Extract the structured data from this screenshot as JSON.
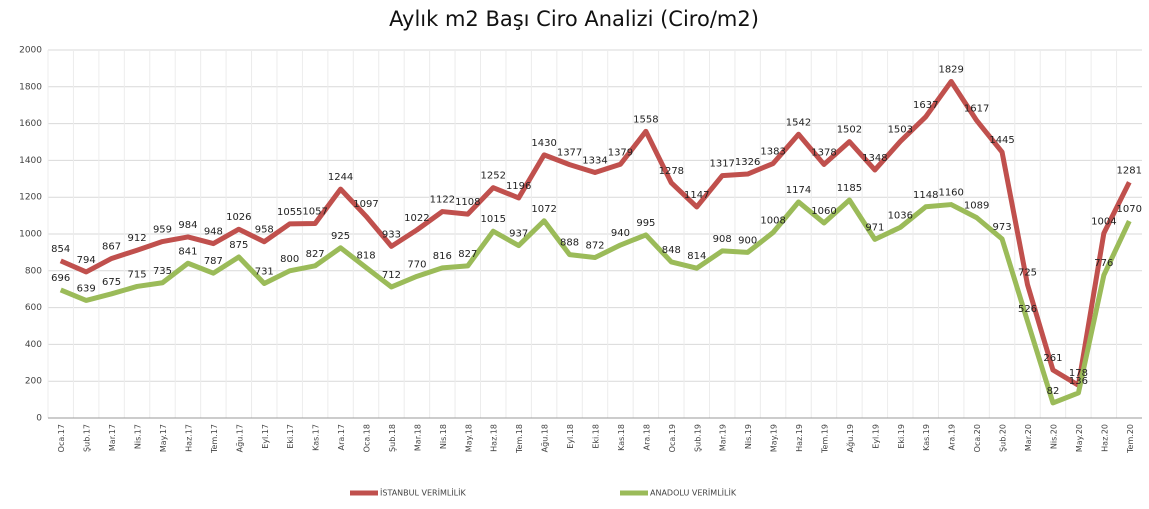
{
  "chart_data": {
    "type": "line",
    "title": "Aylık m2 Başı Ciro Analizi (Ciro/m2)",
    "categories": [
      "Oca.17",
      "Şub.17",
      "Mar.17",
      "Nis.17",
      "May.17",
      "Haz.17",
      "Tem.17",
      "Ağu.17",
      "Eyl.17",
      "Eki.17",
      "Kas.17",
      "Ara.17",
      "Oca.18",
      "Şub.18",
      "Mar.18",
      "Nis.18",
      "May.18",
      "Haz.18",
      "Tem.18",
      "Ağu.18",
      "Eyl.18",
      "Eki.18",
      "Kas.18",
      "Ara.18",
      "Oca.19",
      "Şub.19",
      "Mar.19",
      "Nis.19",
      "May.19",
      "Haz.19",
      "Tem.19",
      "Ağu.19",
      "Eyl.19",
      "Eki.19",
      "Kas.19",
      "Ara.19",
      "Oca.20",
      "Şub.20",
      "Mar.20",
      "Nis.20",
      "May.20",
      "Haz.20",
      "Tem.20"
    ],
    "series": [
      {
        "name": "İSTANBUL VERİMLİLİK",
        "color": "#c0504d",
        "values": [
          854,
          794,
          867,
          912,
          959,
          984,
          948,
          1026,
          958,
          1055,
          1057,
          1244,
          1097,
          933,
          1022,
          1122,
          1108,
          1252,
          1196,
          1430,
          1377,
          1334,
          1379,
          1558,
          1278,
          1147,
          1317,
          1326,
          1383,
          1542,
          1378,
          1502,
          1348,
          1503,
          1637,
          1829,
          1617,
          1445,
          725,
          261,
          178,
          1004,
          1281
        ]
      },
      {
        "name": "ANADOLU VERİMLİLİK",
        "color": "#9bbb59",
        "values": [
          696,
          639,
          675,
          715,
          735,
          841,
          787,
          875,
          731,
          800,
          827,
          925,
          818,
          712,
          770,
          816,
          827,
          1015,
          937,
          1072,
          888,
          872,
          940,
          995,
          848,
          814,
          908,
          900,
          1008,
          1174,
          1060,
          1185,
          971,
          1036,
          1148,
          1160,
          1089,
          973,
          526,
          82,
          136,
          776,
          1070
        ]
      }
    ],
    "ylim": [
      0,
      2000
    ],
    "yticks": [
      0,
      200,
      400,
      600,
      800,
      1000,
      1200,
      1400,
      1600,
      1800,
      2000
    ],
    "grid": true,
    "legend": "bottom"
  }
}
